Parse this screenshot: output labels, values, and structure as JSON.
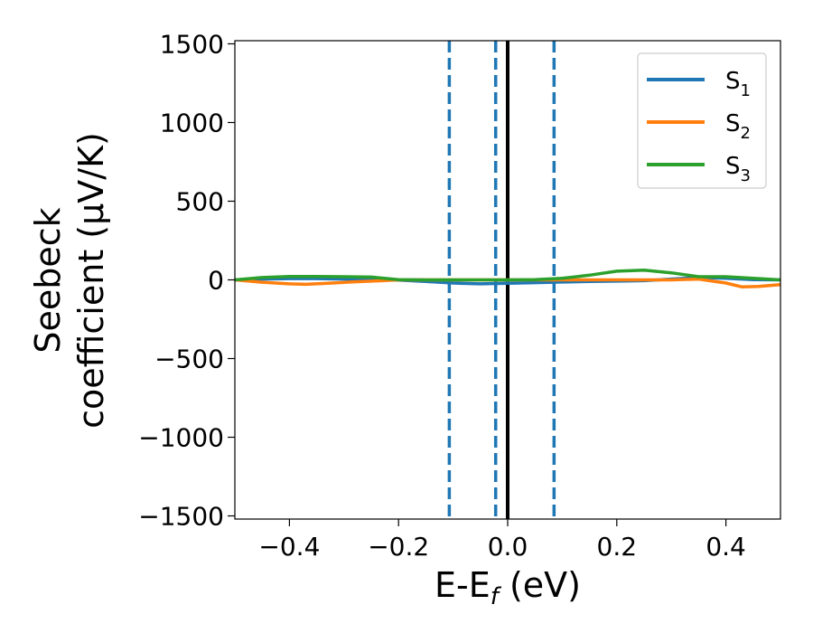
{
  "chart_data": {
    "type": "line",
    "xlabel": {
      "main": "E-E",
      "sub": "f",
      "unit": " (eV)"
    },
    "ylabel": {
      "line1": "Seebeck",
      "line2": "coefficient  (μV/K)"
    },
    "xlim": [
      -0.5,
      0.5
    ],
    "ylim": [
      -1520,
      1520
    ],
    "xticks": [
      -0.4,
      -0.2,
      0.0,
      0.2,
      0.4
    ],
    "xtick_labels": [
      "−0.4",
      "−0.2",
      "0.0",
      "0.2",
      "0.4"
    ],
    "yticks": [
      -1500,
      -1000,
      -500,
      0,
      500,
      1000,
      1500
    ],
    "ytick_labels": [
      "−1500",
      "−1000",
      "−500",
      "0",
      "500",
      "1000",
      "1500"
    ],
    "grid": false,
    "legend_position": "top-right",
    "vertical_lines": [
      {
        "x": 0.0,
        "style": "solid",
        "color": "#000000"
      },
      {
        "x": -0.107,
        "style": "dashed",
        "color": "#1f77b4"
      },
      {
        "x": -0.022,
        "style": "dashed",
        "color": "#1f77b4"
      },
      {
        "x": 0.085,
        "style": "dashed",
        "color": "#1f77b4"
      }
    ],
    "series": [
      {
        "name": "S",
        "subscript": "1",
        "color": "#1f77b4",
        "x": [
          -0.5,
          -0.45,
          -0.4,
          -0.35,
          -0.3,
          -0.25,
          -0.2,
          -0.15,
          -0.1,
          -0.05,
          0.0,
          0.05,
          0.1,
          0.15,
          0.2,
          0.25,
          0.3,
          0.35,
          0.4,
          0.45,
          0.5
        ],
        "y": [
          0,
          5,
          8,
          8,
          5,
          2,
          -2,
          -10,
          -20,
          -25,
          -22,
          -18,
          -14,
          -10,
          -8,
          -5,
          5,
          15,
          10,
          2,
          0
        ]
      },
      {
        "name": "S",
        "subscript": "2",
        "color": "#ff7f0e",
        "x": [
          -0.5,
          -0.45,
          -0.4,
          -0.37,
          -0.33,
          -0.28,
          -0.23,
          -0.2,
          -0.15,
          -0.1,
          -0.05,
          0.0,
          0.05,
          0.1,
          0.15,
          0.2,
          0.25,
          0.3,
          0.35,
          0.4,
          0.43,
          0.46,
          0.5
        ],
        "y": [
          0,
          -15,
          -25,
          -28,
          -22,
          -12,
          -5,
          0,
          0,
          0,
          0,
          0,
          0,
          0,
          0,
          0,
          0,
          0,
          5,
          -20,
          -45,
          -42,
          -30
        ]
      },
      {
        "name": "S",
        "subscript": "3",
        "color": "#2ca02c",
        "x": [
          -0.5,
          -0.45,
          -0.4,
          -0.35,
          -0.3,
          -0.25,
          -0.2,
          -0.15,
          -0.1,
          -0.05,
          0.0,
          0.05,
          0.1,
          0.15,
          0.2,
          0.25,
          0.3,
          0.35,
          0.4,
          0.45,
          0.5
        ],
        "y": [
          0,
          15,
          22,
          22,
          20,
          18,
          2,
          0,
          0,
          0,
          0,
          2,
          10,
          30,
          55,
          62,
          45,
          20,
          20,
          10,
          0
        ]
      }
    ]
  }
}
